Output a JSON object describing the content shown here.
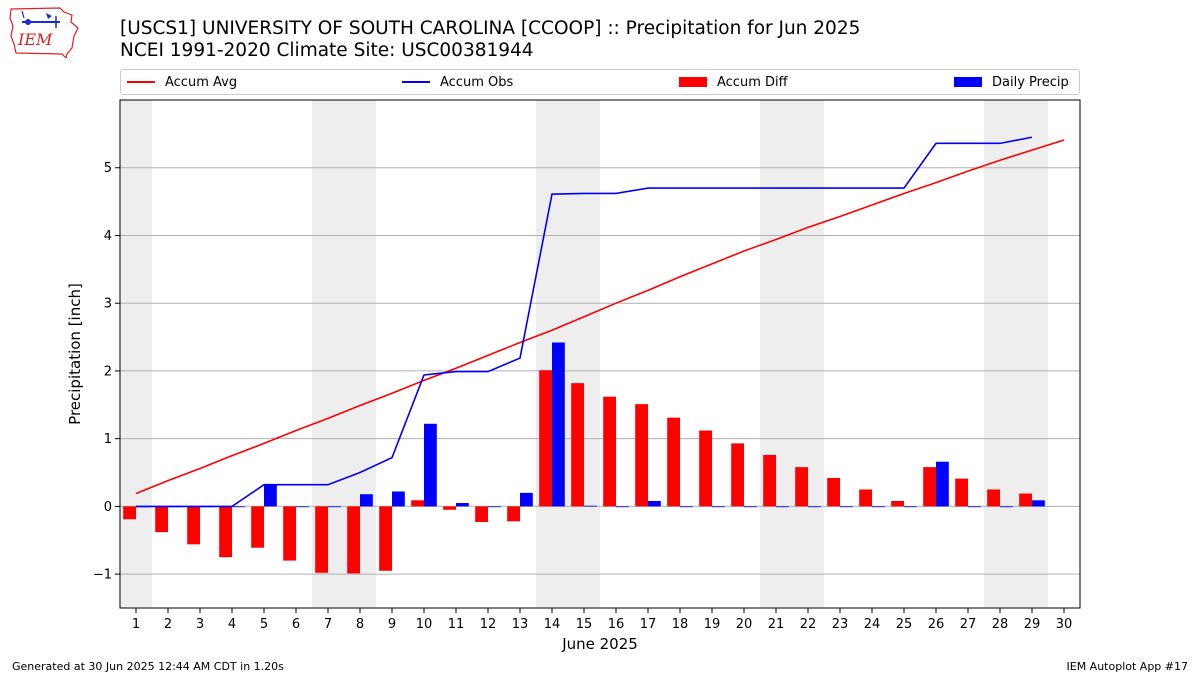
{
  "header": {
    "title_line1": "[USCS1] UNIVERSITY OF SOUTH CAROLINA [CCOOP] :: Precipitation for Jun 2025",
    "title_line2": "NCEI 1991-2020 Climate Site: USC00381944"
  },
  "logo": {
    "text": "IEM"
  },
  "footer": {
    "left": "Generated at 30 Jun 2025 12:44 AM CDT in 1.20s",
    "right": "IEM Autoplot App #17"
  },
  "colors": {
    "accum_avg": "#ff0000",
    "accum_obs": "#0000ff",
    "accum_diff": "#ff0000",
    "daily_precip": "#0000ff",
    "weekend_shade": "#eeeeee",
    "grid": "#b0b0b0"
  },
  "chart_data": {
    "type": "bar",
    "xlabel": "June 2025",
    "ylabel": "Precipitation [inch]",
    "xlim": [
      0.5,
      30.5
    ],
    "ylim": [
      -1.5,
      6.0
    ],
    "yticks": [
      -1,
      0,
      1,
      2,
      3,
      4,
      5
    ],
    "ytick_labels": [
      "−1",
      "0",
      "1",
      "2",
      "3",
      "4",
      "5"
    ],
    "x": [
      1,
      2,
      3,
      4,
      5,
      6,
      7,
      8,
      9,
      10,
      11,
      12,
      13,
      14,
      15,
      16,
      17,
      18,
      19,
      20,
      21,
      22,
      23,
      24,
      25,
      26,
      27,
      28,
      29,
      30
    ],
    "x_tick_labels": [
      "1",
      "2",
      "3",
      "4",
      "5",
      "6",
      "7",
      "8",
      "9",
      "10",
      "11",
      "12",
      "13",
      "14",
      "15",
      "16",
      "17",
      "18",
      "19",
      "20",
      "21",
      "22",
      "23",
      "24",
      "25",
      "26",
      "27",
      "28",
      "29",
      "30"
    ],
    "grid": "horizontal",
    "legend_position": "top",
    "shaded_days": [
      [
        1,
        1
      ],
      [
        7,
        8
      ],
      [
        14,
        15
      ],
      [
        21,
        22
      ],
      [
        28,
        29
      ]
    ],
    "series": [
      {
        "name": "Accum Avg",
        "kind": "line",
        "values": [
          0.19,
          0.38,
          0.56,
          0.75,
          0.93,
          1.12,
          1.3,
          1.49,
          1.67,
          1.86,
          2.04,
          2.23,
          2.42,
          2.6,
          2.8,
          3.0,
          3.19,
          3.39,
          3.58,
          3.77,
          3.94,
          4.12,
          4.28,
          4.45,
          4.62,
          4.78,
          4.95,
          5.11,
          5.26,
          5.41
        ]
      },
      {
        "name": "Accum Obs",
        "kind": "line",
        "values": [
          0.0,
          0.0,
          0.0,
          0.0,
          0.32,
          0.32,
          0.32,
          0.5,
          0.72,
          1.94,
          1.99,
          1.99,
          2.19,
          4.61,
          4.62,
          4.62,
          4.7,
          4.7,
          4.7,
          4.7,
          4.7,
          4.7,
          4.7,
          4.7,
          4.7,
          5.36,
          5.36,
          5.36,
          5.45,
          null
        ]
      },
      {
        "name": "Accum Diff",
        "kind": "bar",
        "values": [
          -0.19,
          -0.38,
          -0.56,
          -0.75,
          -0.61,
          -0.8,
          -0.98,
          -0.99,
          -0.95,
          0.09,
          -0.05,
          -0.23,
          -0.22,
          2.01,
          1.82,
          1.62,
          1.51,
          1.31,
          1.12,
          0.93,
          0.76,
          0.58,
          0.42,
          0.25,
          0.08,
          0.58,
          0.41,
          0.25,
          0.19,
          null
        ]
      },
      {
        "name": "Daily Precip",
        "kind": "bar",
        "values": [
          0,
          0,
          0,
          0,
          0.32,
          0,
          0,
          0.18,
          0.22,
          1.22,
          0.05,
          0,
          0.2,
          2.42,
          0.01,
          0,
          0.08,
          0,
          0,
          0,
          0,
          0,
          0,
          0,
          0,
          0.66,
          0,
          0,
          0.09,
          null
        ]
      }
    ]
  }
}
